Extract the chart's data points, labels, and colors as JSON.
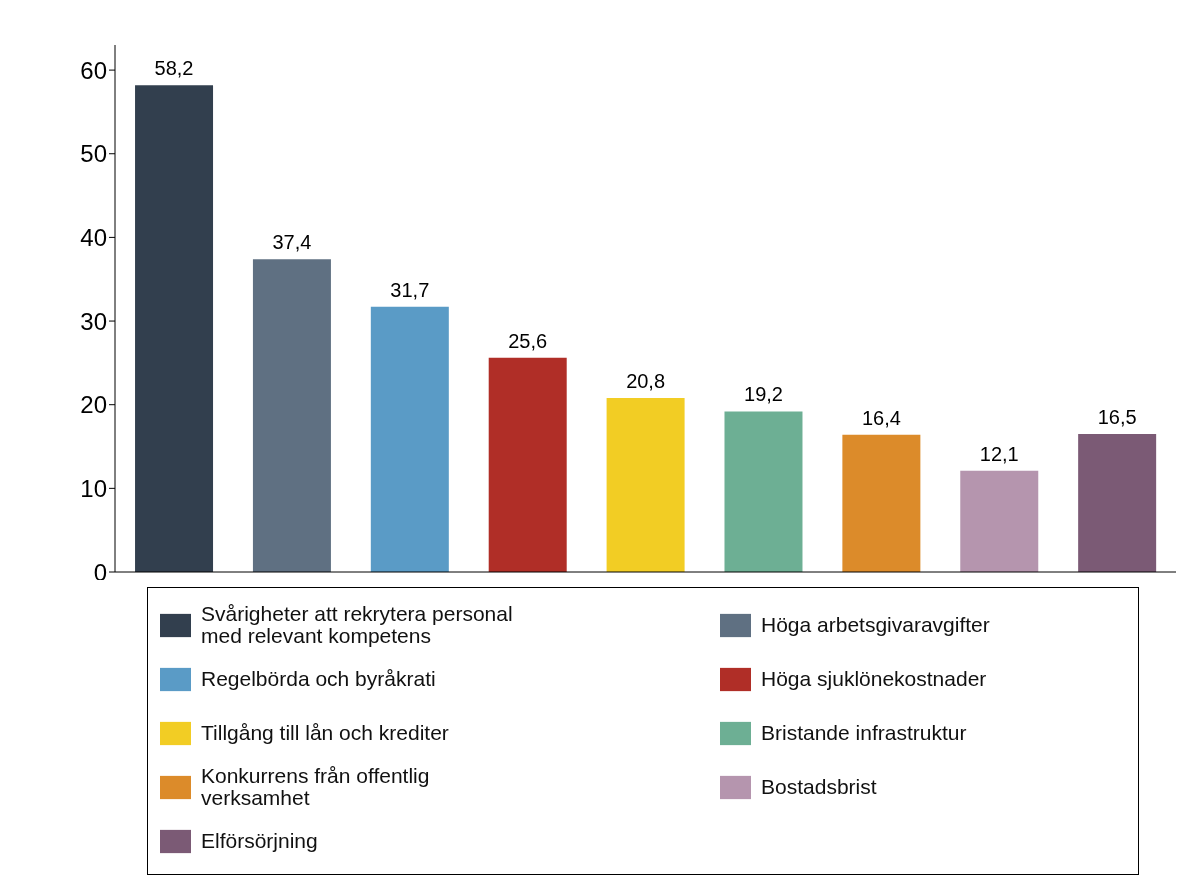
{
  "chart_data": {
    "type": "bar",
    "stacked": true,
    "categories": [
      null,
      null,
      null,
      null,
      null,
      null,
      null,
      null,
      null
    ],
    "ylim": [
      0,
      63
    ],
    "yticks": [
      0,
      10,
      20,
      30,
      40,
      50,
      60
    ],
    "grid": false,
    "legend": "bottom",
    "tick_labels": "y",
    "series": [
      {
        "name": "Svårigheter att rekrytera personal med relevant kompetens",
        "color": "#323f4e",
        "values": [
          58.2,
          null,
          null,
          null,
          null,
          null,
          null,
          null,
          null
        ],
        "value_labels": [
          "58,2",
          null,
          null,
          null,
          null,
          null,
          null,
          null,
          null
        ]
      },
      {
        "name": "Höga arbetsgivaravgifter",
        "color": "#5f7082",
        "values": [
          null,
          37.4,
          null,
          null,
          null,
          null,
          null,
          null,
          null
        ],
        "value_labels": [
          null,
          "37,4",
          null,
          null,
          null,
          null,
          null,
          null,
          null
        ]
      },
      {
        "name": "Regelbörda och byråkrati",
        "color": "#5a9bc6",
        "values": [
          null,
          null,
          31.7,
          null,
          null,
          null,
          null,
          null,
          null
        ],
        "value_labels": [
          null,
          null,
          "31,7",
          null,
          null,
          null,
          null,
          null,
          null
        ]
      },
      {
        "name": "Höga sjuklönekostnader",
        "color": "#b02e27",
        "values": [
          null,
          null,
          null,
          25.6,
          null,
          null,
          null,
          null,
          null
        ],
        "value_labels": [
          null,
          null,
          null,
          "25,6",
          null,
          null,
          null,
          null,
          null
        ]
      },
      {
        "name": "Tillgång till lån och krediter",
        "color": "#f2cd24",
        "values": [
          null,
          null,
          null,
          null,
          20.8,
          null,
          null,
          null,
          null
        ],
        "value_labels": [
          null,
          null,
          null,
          null,
          "20,8",
          null,
          null,
          null,
          null
        ]
      },
      {
        "name": "Bristande infrastruktur",
        "color": "#6daf94",
        "values": [
          null,
          null,
          null,
          null,
          null,
          19.2,
          null,
          null,
          null
        ],
        "value_labels": [
          null,
          null,
          null,
          null,
          null,
          "19,2",
          null,
          null,
          null
        ]
      },
      {
        "name": "Konkurrens från offentlig verksamhet",
        "color": "#dc8b2a",
        "values": [
          null,
          null,
          null,
          null,
          null,
          null,
          16.4,
          null,
          null
        ],
        "value_labels": [
          null,
          null,
          null,
          null,
          null,
          null,
          "16,4",
          null,
          null
        ]
      },
      {
        "name": "Bostadsbrist",
        "color": "#b595ae",
        "values": [
          null,
          null,
          null,
          null,
          null,
          null,
          null,
          12.1,
          null
        ],
        "value_labels": [
          null,
          null,
          null,
          null,
          null,
          null,
          null,
          "12,1",
          null
        ]
      },
      {
        "name": "Elförsörjning",
        "color": "#7b5a75",
        "values": [
          null,
          null,
          null,
          null,
          null,
          null,
          null,
          null,
          16.5
        ],
        "value_labels": [
          null,
          null,
          null,
          null,
          null,
          null,
          null,
          null,
          "16,5"
        ]
      }
    ]
  }
}
